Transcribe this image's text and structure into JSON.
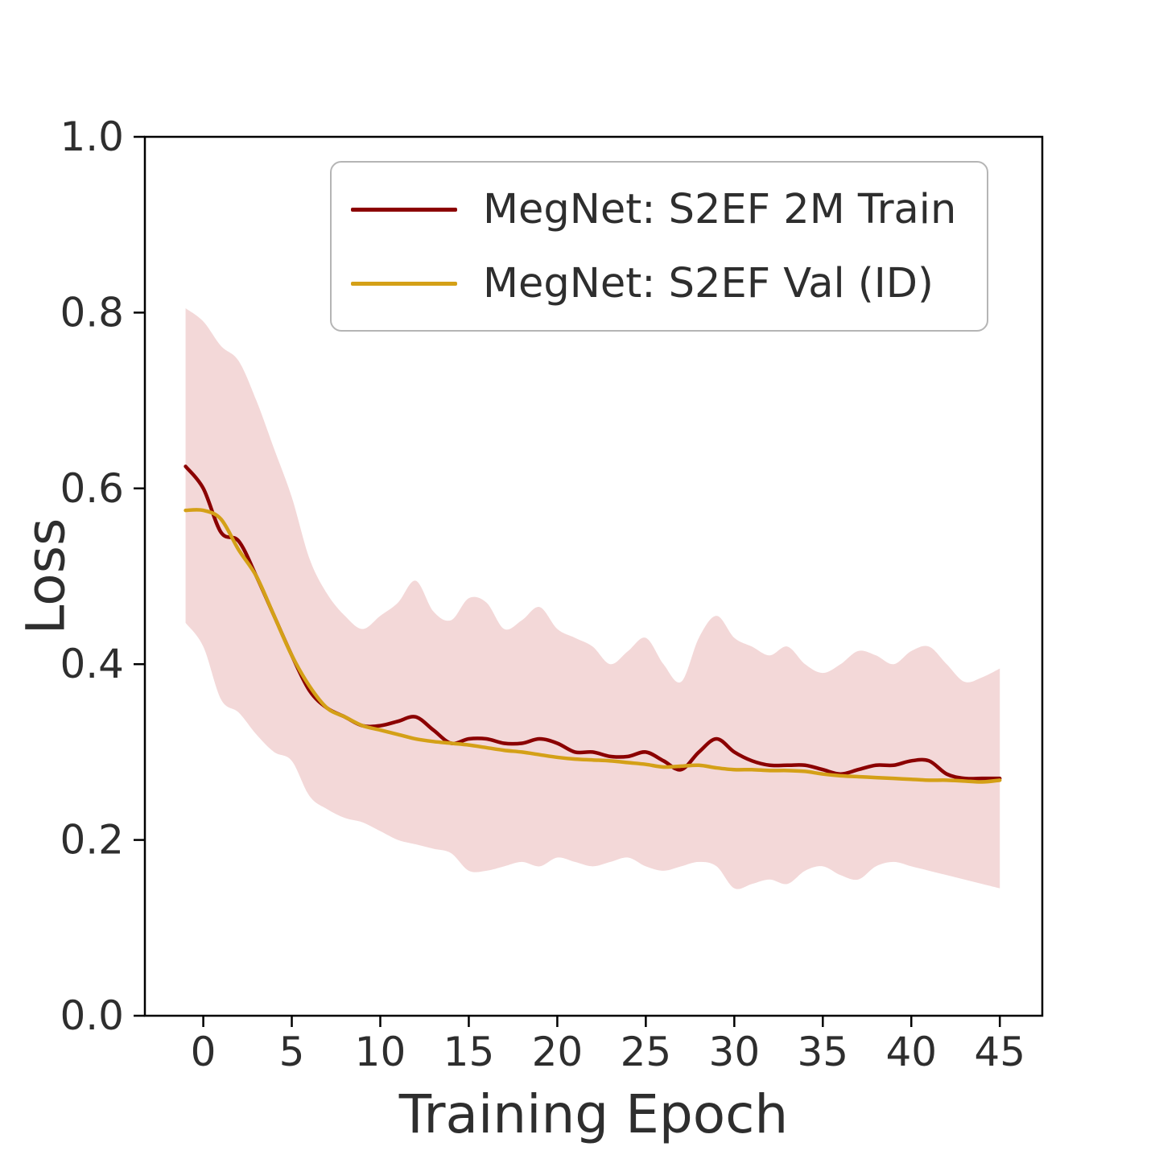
{
  "chart_data": {
    "type": "line",
    "title": "",
    "xlabel": "Training Epoch",
    "ylabel": "Loss",
    "xlim": [
      -3.3,
      47.4
    ],
    "ylim": [
      0,
      1
    ],
    "grid": false,
    "legend_position": "upper center",
    "text_color": "#2e2e2e",
    "spine_color": "#000000",
    "x_ticks": [
      0,
      5,
      10,
      15,
      20,
      25,
      30,
      35,
      40,
      45
    ],
    "y_ticks": [
      "0.0",
      "0.2",
      "0.4",
      "0.6",
      "0.8",
      "1.0"
    ],
    "x": [
      -1,
      0,
      1,
      2,
      3,
      4,
      5,
      6,
      7,
      8,
      9,
      10,
      11,
      12,
      13,
      14,
      15,
      16,
      17,
      18,
      19,
      20,
      21,
      22,
      23,
      24,
      25,
      26,
      27,
      28,
      29,
      30,
      31,
      32,
      33,
      34,
      35,
      36,
      37,
      38,
      39,
      40,
      41,
      42,
      43,
      44,
      45
    ],
    "series": [
      {
        "name": "MegNet: S2EF 2M Train",
        "color": "#8b0000",
        "values": [
          0.625,
          0.6,
          0.55,
          0.54,
          0.5,
          0.455,
          0.41,
          0.37,
          0.35,
          0.34,
          0.33,
          0.33,
          0.335,
          0.34,
          0.325,
          0.31,
          0.315,
          0.315,
          0.31,
          0.31,
          0.315,
          0.31,
          0.3,
          0.3,
          0.295,
          0.295,
          0.3,
          0.29,
          0.28,
          0.3,
          0.315,
          0.3,
          0.29,
          0.285,
          0.285,
          0.285,
          0.28,
          0.275,
          0.28,
          0.285,
          0.285,
          0.29,
          0.29,
          0.275,
          0.27,
          0.27,
          0.27
        ]
      },
      {
        "name": "MegNet: S2EF Val (ID)",
        "color": "#d4a017",
        "values": [
          0.575,
          0.575,
          0.565,
          0.53,
          0.5,
          0.455,
          0.41,
          0.375,
          0.35,
          0.34,
          0.33,
          0.325,
          0.32,
          0.315,
          0.312,
          0.31,
          0.308,
          0.305,
          0.302,
          0.3,
          0.297,
          0.294,
          0.292,
          0.291,
          0.29,
          0.288,
          0.286,
          0.283,
          0.284,
          0.285,
          0.282,
          0.28,
          0.28,
          0.279,
          0.279,
          0.278,
          0.275,
          0.273,
          0.272,
          0.271,
          0.27,
          0.269,
          0.268,
          0.268,
          0.267,
          0.266,
          0.268
        ]
      }
    ],
    "band": {
      "belongs_to": "MegNet: S2EF 2M Train",
      "color": "#f3d8d8",
      "upper": [
        0.805,
        0.79,
        0.762,
        0.745,
        0.7,
        0.645,
        0.59,
        0.52,
        0.48,
        0.455,
        0.44,
        0.455,
        0.47,
        0.495,
        0.46,
        0.45,
        0.475,
        0.47,
        0.44,
        0.45,
        0.465,
        0.44,
        0.43,
        0.42,
        0.4,
        0.415,
        0.43,
        0.4,
        0.38,
        0.43,
        0.455,
        0.43,
        0.42,
        0.41,
        0.42,
        0.4,
        0.39,
        0.4,
        0.415,
        0.41,
        0.4,
        0.415,
        0.42,
        0.4,
        0.38,
        0.385,
        0.395
      ],
      "lower": [
        0.447,
        0.42,
        0.36,
        0.345,
        0.32,
        0.3,
        0.29,
        0.25,
        0.235,
        0.225,
        0.22,
        0.21,
        0.2,
        0.195,
        0.19,
        0.185,
        0.165,
        0.165,
        0.17,
        0.175,
        0.17,
        0.18,
        0.175,
        0.17,
        0.175,
        0.18,
        0.17,
        0.165,
        0.17,
        0.175,
        0.17,
        0.145,
        0.15,
        0.155,
        0.15,
        0.165,
        0.17,
        0.16,
        0.155,
        0.17,
        0.175,
        0.17,
        0.165,
        0.16,
        0.155,
        0.15,
        0.145
      ]
    }
  }
}
